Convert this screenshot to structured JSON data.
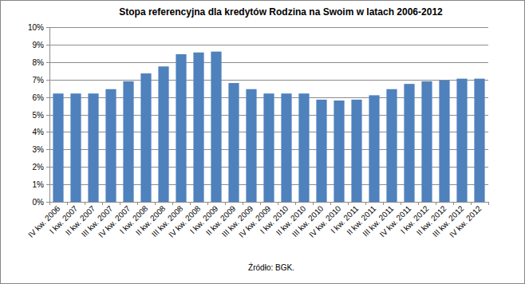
{
  "chart_data": {
    "type": "bar",
    "title": "Stopa referencyjna dla kredytów Rodzina na Swoim w latach 2006-2012",
    "source": "Źródło: BGK.",
    "categories": [
      "IV kw. 2006",
      "I kw. 2007",
      "II kw. 2007",
      "III kw. 2007",
      "IV kw. 2007",
      "I kw. 2008",
      "II kw. 2008",
      "III kw. 2008",
      "IV kw. 2008",
      "I kw. 2009",
      "II kw. 2009",
      "III kw. 2009",
      "IV kw. 2009",
      "I kw. 2010",
      "II kw. 2010",
      "III kw. 2010",
      "IV kw. 2010",
      "I kw. 2011",
      "II kw. 2011",
      "III kw. 2011",
      "IV kw. 2011",
      "I kw. 2012",
      "II kw. 2012",
      "III kw. 2012",
      "IV kw. 2012"
    ],
    "values": [
      6.2,
      6.2,
      6.2,
      6.45,
      6.9,
      7.35,
      7.75,
      8.45,
      8.55,
      8.6,
      6.8,
      6.45,
      6.2,
      6.2,
      6.2,
      5.85,
      5.8,
      5.85,
      6.1,
      6.45,
      6.75,
      6.9,
      6.95,
      7.05,
      7.05
    ],
    "color": "#4f81bd",
    "ylim": [
      0,
      10
    ],
    "yticks": [
      {
        "value": 0,
        "label": "0%"
      },
      {
        "value": 1,
        "label": "1%"
      },
      {
        "value": 2,
        "label": "2%"
      },
      {
        "value": 3,
        "label": "3%"
      },
      {
        "value": 4,
        "label": "4%"
      },
      {
        "value": 5,
        "label": "5%"
      },
      {
        "value": 6,
        "label": "6%"
      },
      {
        "value": 7,
        "label": "7%"
      },
      {
        "value": 8,
        "label": "8%"
      },
      {
        "value": 9,
        "label": "9%"
      },
      {
        "value": 10,
        "label": "10%"
      }
    ],
    "grid": true
  }
}
